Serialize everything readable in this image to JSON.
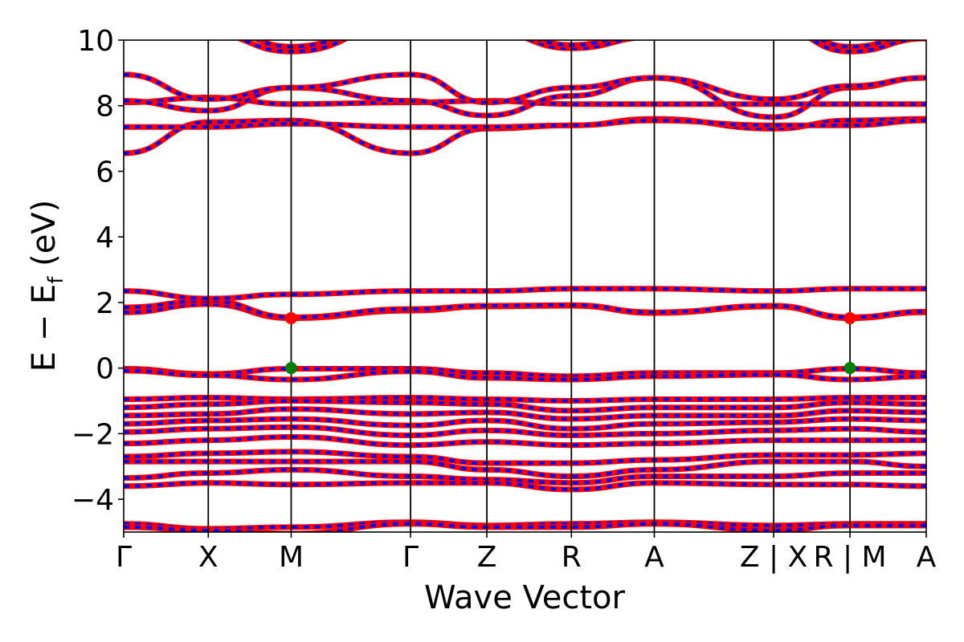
{
  "chart_data": {
    "type": "line",
    "title": "",
    "xlabel": "Wave Vector",
    "ylabel_parts": {
      "main": "E − E",
      "sub": "f",
      "tail": " (eV)"
    },
    "ylim": [
      -5,
      10
    ],
    "yticks": [
      -4,
      -2,
      0,
      2,
      4,
      6,
      8,
      10
    ],
    "ytick_labels": [
      "−4",
      "−2",
      "0",
      "2",
      "4",
      "6",
      "8",
      "10"
    ],
    "kpath_labels": [
      "Γ",
      "X",
      "M",
      "Γ",
      "Z",
      "R",
      "A",
      "Z | X",
      "R | M",
      "A"
    ],
    "xlim": [
      0,
      9.68
    ],
    "kpath_positions": [
      0,
      1.02,
      2.02,
      3.46,
      4.38,
      5.4,
      6.4,
      7.84,
      8.76,
      9.68
    ],
    "grid": false,
    "legend": "none",
    "colors": {
      "band_primary": "#ff0000",
      "band_secondary": "#0000ff",
      "cbm_marker": "#ff0000",
      "vbm_marker": "#008000",
      "kpath_line": "#000000"
    },
    "markers": [
      {
        "name": "CBM",
        "x": 2.02,
        "y": 1.52,
        "color": "#ff0000"
      },
      {
        "name": "CBM",
        "x": 8.76,
        "y": 1.52,
        "color": "#ff0000"
      },
      {
        "name": "VBM",
        "x": 2.02,
        "y": 0.0,
        "color": "#008000"
      },
      {
        "name": "VBM",
        "x": 8.76,
        "y": 0.0,
        "color": "#008000"
      }
    ],
    "series": [
      {
        "values": [
          [
            0,
            -0.02
          ],
          [
            1.02,
            -0.18
          ],
          [
            2.02,
            -0.02
          ],
          [
            3.46,
            -0.02
          ],
          [
            4.38,
            -0.15
          ],
          [
            5.4,
            -0.25
          ],
          [
            6.4,
            -0.15
          ],
          [
            7.84,
            -0.15
          ],
          [
            8.76,
            -0.02
          ],
          [
            9.68,
            -0.15
          ]
        ]
      },
      {
        "values": [
          [
            0,
            -0.08
          ],
          [
            1.02,
            -0.22
          ],
          [
            2.02,
            -0.35
          ],
          [
            3.46,
            -0.1
          ],
          [
            4.38,
            -0.3
          ],
          [
            5.4,
            -0.35
          ],
          [
            6.4,
            -0.25
          ],
          [
            7.84,
            -0.2
          ],
          [
            8.76,
            -0.35
          ],
          [
            9.68,
            -0.25
          ]
        ]
      },
      {
        "values": [
          [
            0,
            1.7
          ],
          [
            1.02,
            1.95
          ],
          [
            2.02,
            1.52
          ],
          [
            3.46,
            1.75
          ],
          [
            4.38,
            1.88
          ],
          [
            5.4,
            1.9
          ],
          [
            6.4,
            1.68
          ],
          [
            7.84,
            1.88
          ],
          [
            8.76,
            1.52
          ],
          [
            9.68,
            1.7
          ]
        ]
      },
      {
        "values": [
          [
            0,
            1.85
          ],
          [
            1.02,
            2.05
          ],
          [
            2.02,
            1.55
          ],
          [
            3.46,
            1.8
          ],
          [
            4.38,
            1.9
          ],
          [
            5.4,
            1.92
          ],
          [
            6.4,
            1.7
          ],
          [
            7.84,
            1.9
          ],
          [
            8.76,
            1.55
          ],
          [
            9.68,
            1.72
          ]
        ]
      },
      {
        "values": [
          [
            0,
            2.35
          ],
          [
            1.02,
            2.12
          ],
          [
            2.02,
            2.25
          ],
          [
            3.46,
            2.35
          ],
          [
            4.38,
            2.35
          ],
          [
            5.4,
            2.42
          ],
          [
            6.4,
            2.42
          ],
          [
            7.84,
            2.35
          ],
          [
            8.76,
            2.42
          ],
          [
            9.68,
            2.42
          ]
        ]
      },
      {
        "values": [
          [
            0,
            6.55
          ],
          [
            1.02,
            7.5
          ],
          [
            2.02,
            7.55
          ],
          [
            3.46,
            6.55
          ],
          [
            4.38,
            7.3
          ],
          [
            5.4,
            7.4
          ],
          [
            6.4,
            7.6
          ],
          [
            7.84,
            7.3
          ],
          [
            8.76,
            7.55
          ],
          [
            9.68,
            7.6
          ]
        ]
      },
      {
        "values": [
          [
            0,
            7.35
          ],
          [
            1.02,
            7.35
          ],
          [
            2.02,
            7.45
          ],
          [
            3.46,
            7.35
          ],
          [
            4.38,
            7.35
          ],
          [
            5.4,
            7.4
          ],
          [
            6.4,
            7.55
          ],
          [
            7.84,
            7.4
          ],
          [
            8.76,
            7.4
          ],
          [
            9.68,
            7.55
          ]
        ]
      },
      {
        "values": [
          [
            0,
            8.1
          ],
          [
            1.02,
            8.25
          ],
          [
            2.02,
            8.05
          ],
          [
            3.46,
            8.1
          ],
          [
            4.38,
            8.15
          ],
          [
            5.4,
            8.05
          ],
          [
            6.4,
            8.05
          ],
          [
            7.84,
            8.05
          ],
          [
            8.76,
            8.05
          ],
          [
            9.68,
            8.05
          ]
        ]
      },
      {
        "values": [
          [
            0,
            8.15
          ],
          [
            1.02,
            7.85
          ],
          [
            2.02,
            8.55
          ],
          [
            3.46,
            8.15
          ],
          [
            4.38,
            7.7
          ],
          [
            5.4,
            8.3
          ],
          [
            6.4,
            8.85
          ],
          [
            7.84,
            7.65
          ],
          [
            8.76,
            8.55
          ],
          [
            9.68,
            8.85
          ]
        ]
      },
      {
        "values": [
          [
            0,
            8.95
          ],
          [
            1.02,
            8.2
          ],
          [
            2.02,
            8.55
          ],
          [
            3.46,
            8.95
          ],
          [
            4.38,
            8.1
          ],
          [
            5.4,
            8.55
          ],
          [
            6.4,
            8.85
          ],
          [
            7.84,
            8.2
          ],
          [
            8.76,
            8.6
          ],
          [
            9.68,
            8.85
          ]
        ]
      },
      {
        "values": [
          [
            0,
            -0.95
          ],
          [
            1.02,
            -0.9
          ],
          [
            2.02,
            -0.95
          ],
          [
            3.46,
            -0.9
          ],
          [
            4.38,
            -0.95
          ],
          [
            5.4,
            -1.0
          ],
          [
            6.4,
            -0.95
          ],
          [
            7.84,
            -0.95
          ],
          [
            8.76,
            -0.9
          ],
          [
            9.68,
            -0.9
          ]
        ]
      },
      {
        "values": [
          [
            0,
            -1.2
          ],
          [
            1.02,
            -1.1
          ],
          [
            2.02,
            -1.0
          ],
          [
            3.46,
            -1.05
          ],
          [
            4.38,
            -1.1
          ],
          [
            5.4,
            -1.3
          ],
          [
            6.4,
            -1.2
          ],
          [
            7.84,
            -1.2
          ],
          [
            8.76,
            -1.05
          ],
          [
            9.68,
            -1.1
          ]
        ]
      },
      {
        "values": [
          [
            0,
            -1.45
          ],
          [
            1.02,
            -1.4
          ],
          [
            2.02,
            -1.25
          ],
          [
            3.46,
            -1.4
          ],
          [
            4.38,
            -1.35
          ],
          [
            5.4,
            -1.55
          ],
          [
            6.4,
            -1.45
          ],
          [
            7.84,
            -1.45
          ],
          [
            8.76,
            -1.3
          ],
          [
            9.68,
            -1.35
          ]
        ]
      },
      {
        "values": [
          [
            0,
            -1.7
          ],
          [
            1.02,
            -1.6
          ],
          [
            2.02,
            -1.55
          ],
          [
            3.46,
            -1.75
          ],
          [
            4.38,
            -1.6
          ],
          [
            5.4,
            -1.85
          ],
          [
            6.4,
            -1.7
          ],
          [
            7.84,
            -1.65
          ],
          [
            8.76,
            -1.55
          ],
          [
            9.68,
            -1.6
          ]
        ]
      },
      {
        "values": [
          [
            0,
            -1.95
          ],
          [
            1.02,
            -1.85
          ],
          [
            2.02,
            -1.8
          ],
          [
            3.46,
            -2.05
          ],
          [
            4.38,
            -1.9
          ],
          [
            5.4,
            -2.05
          ],
          [
            6.4,
            -2.0
          ],
          [
            7.84,
            -1.9
          ],
          [
            8.76,
            -1.85
          ],
          [
            9.68,
            -1.95
          ]
        ]
      },
      {
        "values": [
          [
            0,
            -2.3
          ],
          [
            1.02,
            -2.2
          ],
          [
            2.02,
            -2.1
          ],
          [
            3.46,
            -2.35
          ],
          [
            4.38,
            -2.25
          ],
          [
            5.4,
            -2.35
          ],
          [
            6.4,
            -2.3
          ],
          [
            7.84,
            -2.2
          ],
          [
            8.76,
            -2.2
          ],
          [
            9.68,
            -2.2
          ]
        ]
      },
      {
        "values": [
          [
            0,
            -2.7
          ],
          [
            1.02,
            -2.6
          ],
          [
            2.02,
            -2.55
          ],
          [
            3.46,
            -2.7
          ],
          [
            4.38,
            -2.9
          ],
          [
            5.4,
            -2.9
          ],
          [
            6.4,
            -2.8
          ],
          [
            7.84,
            -2.65
          ],
          [
            8.76,
            -2.65
          ],
          [
            9.68,
            -2.6
          ]
        ]
      },
      {
        "values": [
          [
            0,
            -2.85
          ],
          [
            1.02,
            -2.85
          ],
          [
            2.02,
            -2.85
          ],
          [
            3.46,
            -2.85
          ],
          [
            4.38,
            -3.1
          ],
          [
            5.4,
            -3.3
          ],
          [
            6.4,
            -3.1
          ],
          [
            7.84,
            -2.85
          ],
          [
            8.76,
            -2.85
          ],
          [
            9.68,
            -3.0
          ]
        ]
      },
      {
        "values": [
          [
            0,
            -3.35
          ],
          [
            1.02,
            -3.2
          ],
          [
            2.02,
            -3.1
          ],
          [
            3.46,
            -3.3
          ],
          [
            4.38,
            -3.4
          ],
          [
            5.4,
            -3.5
          ],
          [
            6.4,
            -3.3
          ],
          [
            7.84,
            -3.3
          ],
          [
            8.76,
            -3.2
          ],
          [
            9.68,
            -3.2
          ]
        ]
      },
      {
        "values": [
          [
            0,
            -3.6
          ],
          [
            1.02,
            -3.5
          ],
          [
            2.02,
            -3.55
          ],
          [
            3.46,
            -3.5
          ],
          [
            4.38,
            -3.5
          ],
          [
            5.4,
            -3.7
          ],
          [
            6.4,
            -3.5
          ],
          [
            7.84,
            -3.55
          ],
          [
            8.76,
            -3.55
          ],
          [
            9.68,
            -3.6
          ]
        ]
      },
      {
        "values": [
          [
            0,
            -4.75
          ],
          [
            1.02,
            -4.9
          ],
          [
            2.02,
            -4.85
          ],
          [
            3.46,
            -4.7
          ],
          [
            4.38,
            -4.8
          ],
          [
            5.4,
            -4.75
          ],
          [
            6.4,
            -4.7
          ],
          [
            7.84,
            -4.8
          ],
          [
            8.76,
            -4.75
          ],
          [
            9.68,
            -4.75
          ]
        ]
      },
      {
        "values": [
          [
            0,
            -4.85
          ],
          [
            1.02,
            -4.95
          ],
          [
            2.02,
            -5.05
          ],
          [
            3.46,
            -4.75
          ],
          [
            4.38,
            -4.85
          ],
          [
            5.4,
            -4.85
          ],
          [
            6.4,
            -4.75
          ],
          [
            7.84,
            -4.95
          ],
          [
            8.76,
            -4.8
          ],
          [
            9.68,
            -4.8
          ]
        ]
      },
      {
        "values": [
          [
            0,
            10.6
          ],
          [
            1.02,
            10.2
          ],
          [
            2.02,
            9.65
          ],
          [
            3.46,
            10.6
          ],
          [
            4.38,
            10.3
          ],
          [
            5.4,
            9.75
          ],
          [
            6.4,
            10.1
          ],
          [
            7.84,
            10.4
          ],
          [
            8.76,
            9.65
          ],
          [
            9.68,
            10.05
          ]
        ]
      },
      {
        "values": [
          [
            0,
            10.8
          ],
          [
            1.02,
            10.5
          ],
          [
            2.02,
            9.8
          ],
          [
            3.46,
            10.8
          ],
          [
            4.38,
            10.5
          ],
          [
            5.4,
            9.85
          ],
          [
            6.4,
            10.3
          ],
          [
            7.84,
            10.6
          ],
          [
            8.76,
            9.8
          ],
          [
            9.68,
            10.2
          ]
        ]
      }
    ]
  }
}
